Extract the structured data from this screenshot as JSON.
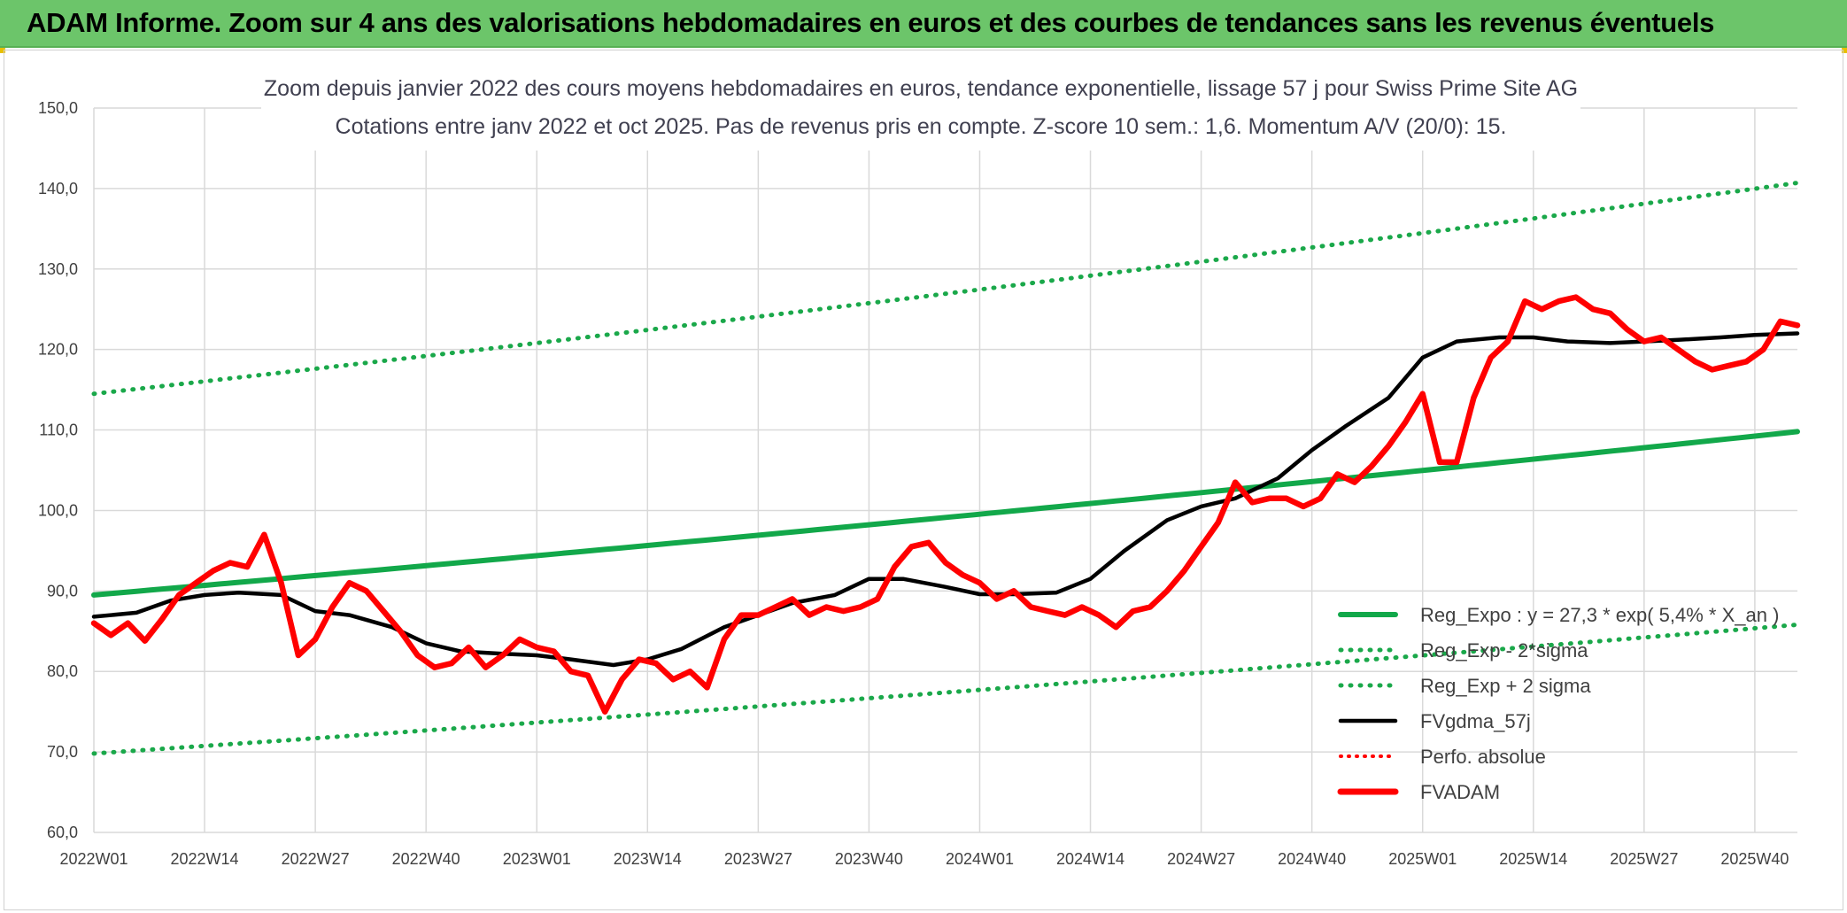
{
  "page_title": "ADAM Informe. Zoom sur 4 ans des valorisations hebdomadaires en euros et des courbes de tendances sans les revenus éventuels",
  "colors": {
    "banner": "#6cc56a",
    "trend": "#12a84a",
    "band": "#1aa84a",
    "smooth": "#000000",
    "price": "#ff0000",
    "perf": "#ff0000",
    "grid": "#d9d9d9"
  },
  "chart_data": {
    "type": "line",
    "title": "Zoom depuis janvier 2022 des cours moyens hebdomadaires en euros, tendance exponentielle, lissage 57 j pour Swiss Prime Site AG",
    "subtitle": "Cotations entre janv 2022 et oct 2025. Pas de revenus pris en compte. Z-score 10 sem.: 1,6. Momentum A/V (20/0): 15.",
    "xlabel": "",
    "ylabel": "",
    "ylim": [
      60,
      150
    ],
    "yticks": [
      "60,0",
      "70,0",
      "80,0",
      "90,0",
      "100,0",
      "110,0",
      "120,0",
      "130,0",
      "140,0",
      "150,0"
    ],
    "xticks": [
      "2022W01",
      "2022W14",
      "2022W27",
      "2022W40",
      "2023W01",
      "2023W14",
      "2023W27",
      "2023W40",
      "2024W01",
      "2024W14",
      "2024W27",
      "2024W40",
      "2025W01",
      "2025W14",
      "2025W27",
      "2025W40"
    ],
    "x_range_weeks": [
      0,
      200
    ],
    "grid": true,
    "legend_position": "bottom-right",
    "legend": [
      "Reg_Expo : y = 27,3 * exp( 5,4% *  X_an )",
      "Reg_Exp - 2*sigma",
      "Reg_Exp + 2 sigma",
      "FVgdma_57j",
      "Perfo. absolue",
      "FVADAM"
    ],
    "series": [
      {
        "name": "Reg_Expo : y = 27,3 * exp( 5,4% *  X_an )",
        "style": "solid",
        "x": [
          0,
          200
        ],
        "y_start": 89.5,
        "y_end": 109.8
      },
      {
        "name": "Reg_Exp - 2*sigma",
        "style": "dotted",
        "x": [
          0,
          200
        ],
        "y_start": 69.8,
        "y_end": 85.8
      },
      {
        "name": "Reg_Exp + 2 sigma",
        "style": "dotted",
        "x": [
          0,
          200
        ],
        "y_start": 114.5,
        "y_end": 140.7
      },
      {
        "name": "FVgdma_57j",
        "style": "solid",
        "x": [
          0,
          5,
          9,
          13,
          17,
          22,
          26,
          30,
          35,
          39,
          43,
          48,
          52,
          56,
          61,
          65,
          69,
          74,
          78,
          82,
          87,
          91,
          95,
          100,
          104,
          108,
          113,
          117,
          121,
          126,
          130,
          134,
          139,
          143,
          147,
          152,
          156,
          160,
          165,
          169,
          173,
          178,
          182,
          186,
          191,
          195,
          200
        ],
        "y": [
          86.8,
          87.3,
          88.8,
          89.5,
          89.8,
          89.5,
          87.5,
          87.0,
          85.5,
          83.5,
          82.5,
          82.2,
          82.0,
          81.5,
          80.8,
          81.5,
          82.8,
          85.5,
          87.0,
          88.5,
          89.5,
          91.5,
          91.5,
          90.5,
          89.6,
          89.6,
          89.8,
          91.5,
          95.0,
          98.8,
          100.5,
          101.5,
          104.0,
          107.5,
          110.5,
          114.0,
          119.0,
          121.0,
          121.5,
          121.5,
          121.0,
          120.8,
          121.0,
          121.2,
          121.5,
          121.8,
          122.0
        ]
      },
      {
        "name": "FVADAM",
        "style": "solid",
        "x": [
          0,
          2,
          4,
          6,
          8,
          10,
          12,
          14,
          16,
          18,
          20,
          22,
          24,
          26,
          28,
          30,
          32,
          34,
          36,
          38,
          40,
          42,
          44,
          46,
          48,
          50,
          52,
          54,
          56,
          58,
          60,
          62,
          64,
          66,
          68,
          70,
          72,
          74,
          76,
          78,
          80,
          82,
          84,
          86,
          88,
          90,
          92,
          94,
          96,
          98,
          100,
          102,
          104,
          106,
          108,
          110,
          112,
          114,
          116,
          118,
          120,
          122,
          124,
          126,
          128,
          130,
          132,
          134,
          136,
          138,
          140,
          142,
          144,
          146,
          148,
          150,
          152,
          154,
          156,
          158,
          160,
          162,
          164,
          166,
          168,
          170,
          172,
          174,
          176,
          178,
          180,
          182,
          184,
          186,
          188,
          190,
          192,
          194,
          196,
          198,
          200
        ],
        "y": [
          86.0,
          84.5,
          86.0,
          83.8,
          86.5,
          89.5,
          91.0,
          92.5,
          93.5,
          93.0,
          97.0,
          91.0,
          82.0,
          84.0,
          88.0,
          91.0,
          90.0,
          87.5,
          85.0,
          82.0,
          80.5,
          81.0,
          83.0,
          80.5,
          82.0,
          84.0,
          83.0,
          82.5,
          80.0,
          79.5,
          75.0,
          79.0,
          81.5,
          81.0,
          79.0,
          80.0,
          78.0,
          84.0,
          87.0,
          87.0,
          88.0,
          89.0,
          87.0,
          88.0,
          87.5,
          88.0,
          89.0,
          93.0,
          95.5,
          96.0,
          93.5,
          92.0,
          91.0,
          89.0,
          90.0,
          88.0,
          87.5,
          87.0,
          88.0,
          87.0,
          85.5,
          87.5,
          88.0,
          90.0,
          92.5,
          95.5,
          98.5,
          103.5,
          101.0,
          101.5,
          101.5,
          100.5,
          101.5,
          104.5,
          103.5,
          105.5,
          108.0,
          111.0,
          114.5,
          106.0,
          106.0,
          114.0,
          119.0,
          121.0,
          126.0,
          125.0,
          126.0,
          126.5,
          125.0,
          124.5,
          122.5,
          121.0,
          121.5,
          120.0,
          118.5,
          117.5,
          118.0,
          118.5,
          120.0,
          123.5,
          123.0
        ]
      }
    ]
  }
}
